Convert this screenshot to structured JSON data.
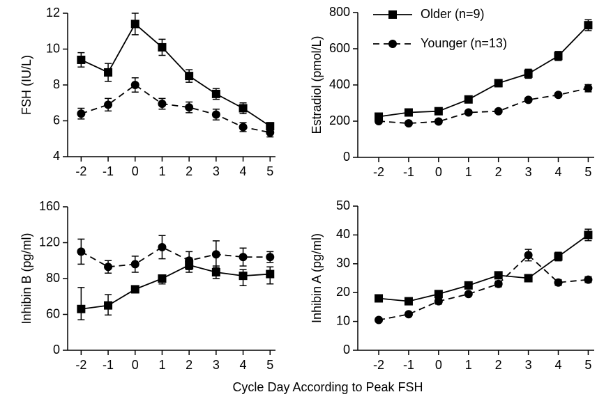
{
  "xlabel": "Cycle Day According to Peak FSH",
  "chart_data": [
    {
      "type": "line",
      "ylabel": "FSH (IU/L)",
      "x": [
        -2,
        -1,
        0,
        1,
        2,
        3,
        4,
        5
      ],
      "xlim": [
        -2.5,
        5.2
      ],
      "xticks": [
        -2,
        -1,
        0,
        1,
        2,
        3,
        4,
        5
      ],
      "ylim": [
        4,
        12
      ],
      "yticks": [
        4,
        6,
        8,
        10,
        12
      ],
      "series": [
        {
          "color": "#000000",
          "marker": "square",
          "dash": "solid",
          "values": [
            9.4,
            8.7,
            11.4,
            10.1,
            8.5,
            7.5,
            6.7,
            5.7
          ],
          "errors": [
            0.4,
            0.5,
            0.6,
            0.45,
            0.35,
            0.3,
            0.3,
            0.2
          ]
        },
        {
          "color": "#000000",
          "marker": "circle",
          "dash": "dashed",
          "values": [
            6.4,
            6.9,
            8.0,
            6.95,
            6.75,
            6.35,
            5.65,
            5.35
          ],
          "errors": [
            0.3,
            0.35,
            0.4,
            0.3,
            0.3,
            0.3,
            0.25,
            0.25
          ]
        }
      ]
    },
    {
      "type": "line",
      "ylabel": "Estradiol (pmol/L)",
      "legend": "upper left",
      "x": [
        -2,
        -1,
        0,
        1,
        2,
        3,
        4,
        5
      ],
      "xlim": [
        -2.7,
        5.2
      ],
      "xticks": [
        -2,
        -1,
        0,
        1,
        2,
        3,
        4,
        5
      ],
      "ylim": [
        0,
        800
      ],
      "yticks": [
        0,
        200,
        400,
        600,
        800
      ],
      "series": [
        {
          "name": "Older (n=9)",
          "color": "#000000",
          "marker": "square",
          "dash": "solid",
          "values": [
            225,
            248,
            255,
            320,
            410,
            462,
            560,
            730
          ],
          "errors": [
            15,
            10,
            10,
            10,
            20,
            25,
            25,
            30
          ]
        },
        {
          "name": "Younger (n=13)",
          "color": "#000000",
          "marker": "circle",
          "dash": "dashed",
          "values": [
            200,
            188,
            198,
            248,
            255,
            318,
            345,
            382
          ],
          "errors": [
            10,
            8,
            10,
            10,
            8,
            10,
            10,
            20
          ]
        }
      ]
    },
    {
      "type": "line",
      "ylabel": "Inhibin B (pg/ml)",
      "yscale": "ticks",
      "x": [
        -2,
        -1,
        0,
        1,
        2,
        3,
        4,
        5
      ],
      "xlim": [
        -2.5,
        5.2
      ],
      "xticks": [
        -2,
        -1,
        0,
        1,
        2,
        3,
        4,
        5
      ],
      "ylim": [
        0,
        160
      ],
      "yticks": [
        0,
        60,
        80,
        120,
        160
      ],
      "series": [
        {
          "color": "#000000",
          "marker": "square",
          "dash": "solid",
          "values": [
            63,
            65,
            74,
            80,
            95,
            87,
            83,
            85
          ],
          "errors": [
            12,
            6,
            2,
            3,
            8,
            7,
            7,
            8
          ]
        },
        {
          "color": "#000000",
          "marker": "circle",
          "dash": "dashed",
          "values": [
            110,
            93,
            96,
            115,
            100,
            107,
            104,
            104
          ],
          "errors": [
            14,
            7,
            9,
            13,
            10,
            15,
            10,
            6
          ]
        }
      ]
    },
    {
      "type": "line",
      "ylabel": "Inhibin A (pg/ml)",
      "x": [
        -2,
        -1,
        0,
        1,
        2,
        3,
        4,
        5
      ],
      "xlim": [
        -2.7,
        5.2
      ],
      "xticks": [
        -2,
        -1,
        0,
        1,
        2,
        3,
        4,
        5
      ],
      "ylim": [
        0,
        50
      ],
      "yticks": [
        0,
        10,
        20,
        30,
        40,
        50
      ],
      "series": [
        {
          "color": "#000000",
          "marker": "square",
          "dash": "solid",
          "values": [
            18,
            17,
            19.5,
            22.5,
            26,
            25,
            32.5,
            40
          ],
          "errors": [
            1,
            1,
            1,
            1,
            1,
            1,
            1.5,
            2
          ]
        },
        {
          "color": "#000000",
          "marker": "circle",
          "dash": "dashed",
          "values": [
            10.5,
            12.5,
            17,
            19.5,
            23,
            33,
            23.5,
            24.5
          ],
          "errors": [
            0.5,
            0.5,
            1,
            0.5,
            1,
            2,
            1,
            1
          ]
        }
      ]
    }
  ]
}
